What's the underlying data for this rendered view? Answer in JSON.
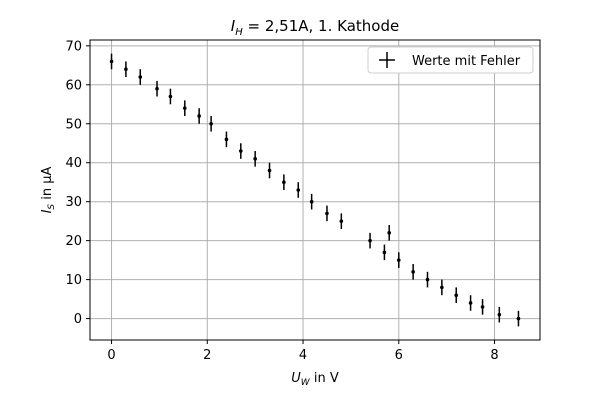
{
  "chart_data": {
    "type": "scatter",
    "title_main": "I",
    "title_sub": "H",
    "title_rest": " = 2,51A, 1. Kathode",
    "xlabel_main": "U",
    "xlabel_sub": "W",
    "xlabel_rest": " in V",
    "ylabel_main": "I",
    "ylabel_sub": "S",
    "ylabel_rest": " in μA",
    "xlim": [
      -0.45,
      8.95
    ],
    "ylim": [
      -5.5,
      71.5
    ],
    "xticks": [
      0,
      2,
      4,
      6,
      8
    ],
    "yticks": [
      0,
      10,
      20,
      30,
      40,
      50,
      60,
      70
    ],
    "grid": true,
    "legend_position": "top-right",
    "colors": {
      "marker": "#000000",
      "grid": "#b0b0b0",
      "frame": "#000000"
    },
    "series": [
      {
        "name": "Werte mit Fehler",
        "yerr": 2,
        "x": [
          0.0,
          0.3,
          0.6,
          0.95,
          1.23,
          1.53,
          1.83,
          2.08,
          2.4,
          2.7,
          3.0,
          3.3,
          3.6,
          3.9,
          4.18,
          4.5,
          4.8,
          5.4,
          5.7,
          5.8,
          6.0,
          6.3,
          6.6,
          6.9,
          7.2,
          7.5,
          7.75,
          8.1,
          8.5
        ],
        "y": [
          66,
          64,
          62,
          59,
          57,
          54,
          52,
          50,
          46,
          43,
          41,
          38,
          35,
          33,
          30,
          27,
          25,
          20,
          17,
          22,
          15,
          12,
          10,
          8,
          6,
          4,
          3,
          1,
          0
        ]
      }
    ]
  }
}
